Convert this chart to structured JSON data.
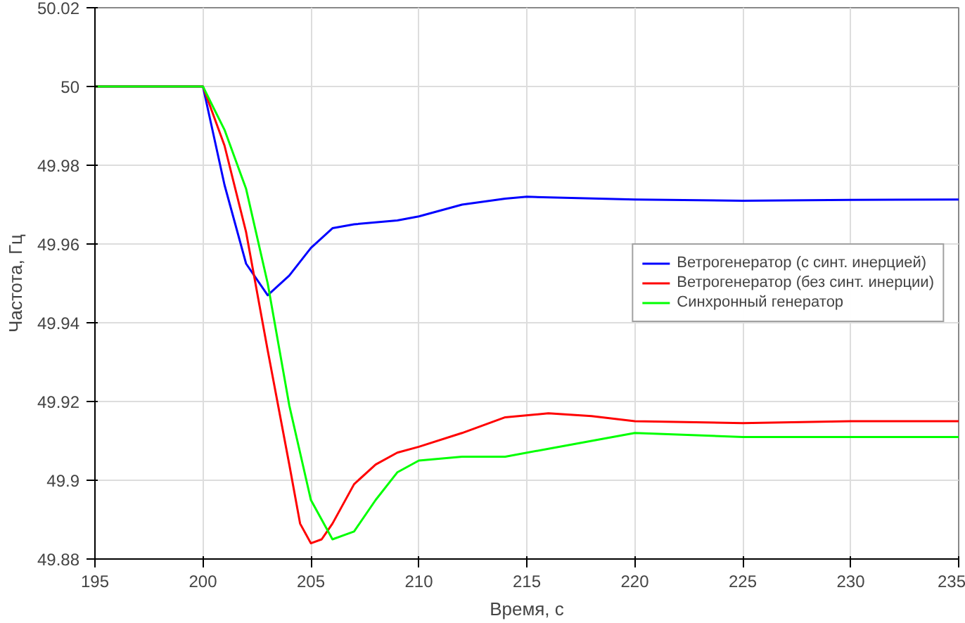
{
  "chart_data": {
    "type": "line",
    "xlabel": "Время, с",
    "ylabel": "Частота, Гц",
    "xlim": [
      195,
      235
    ],
    "ylim": [
      49.88,
      50.02
    ],
    "xticks": [
      195,
      200,
      205,
      210,
      215,
      220,
      225,
      230,
      235
    ],
    "yticks": [
      49.88,
      {
        "value": 49.9,
        "label": "49.9"
      },
      49.92,
      49.94,
      49.96,
      49.98,
      {
        "value": 50,
        "label": "50"
      },
      50.02
    ],
    "grid": true,
    "legend": "right",
    "line_style": "solid",
    "series": [
      {
        "name": "Ветрогенератор (с синт. инерцией)",
        "color": "#0000ff",
        "x": [
          195,
          200,
          201,
          202,
          203,
          204,
          205,
          206,
          207,
          209,
          210,
          212,
          214,
          215,
          220,
          225,
          230,
          235
        ],
        "values": [
          50,
          50,
          49.975,
          49.955,
          49.947,
          49.952,
          49.959,
          49.964,
          49.965,
          49.966,
          49.967,
          49.97,
          49.9715,
          49.972,
          49.9713,
          49.971,
          49.9712,
          49.9713
        ]
      },
      {
        "name": "Ветрогенератор (без синт. инерции)",
        "color": "#ff0000",
        "x": [
          195,
          200,
          201,
          202,
          203,
          204,
          204.5,
          205,
          205.5,
          206,
          207,
          208,
          209,
          210,
          212,
          214,
          216,
          218,
          220,
          225,
          230,
          235
        ],
        "values": [
          50,
          50,
          49.985,
          49.963,
          49.933,
          49.904,
          49.889,
          49.884,
          49.885,
          49.889,
          49.899,
          49.904,
          49.907,
          49.9085,
          49.912,
          49.916,
          49.917,
          49.9163,
          49.915,
          49.9145,
          49.915,
          49.915
        ]
      },
      {
        "name": "Синхронный генератор",
        "color": "#00ff00",
        "x": [
          195,
          200,
          201,
          202,
          203,
          204,
          205,
          206,
          207,
          208,
          209,
          210,
          212,
          214,
          216,
          218,
          220,
          225,
          230,
          235
        ],
        "values": [
          50,
          50,
          49.989,
          49.974,
          49.95,
          49.919,
          49.895,
          49.885,
          49.887,
          49.895,
          49.902,
          49.905,
          49.906,
          49.906,
          49.908,
          49.91,
          49.912,
          49.911,
          49.911,
          49.911
        ]
      }
    ]
  }
}
